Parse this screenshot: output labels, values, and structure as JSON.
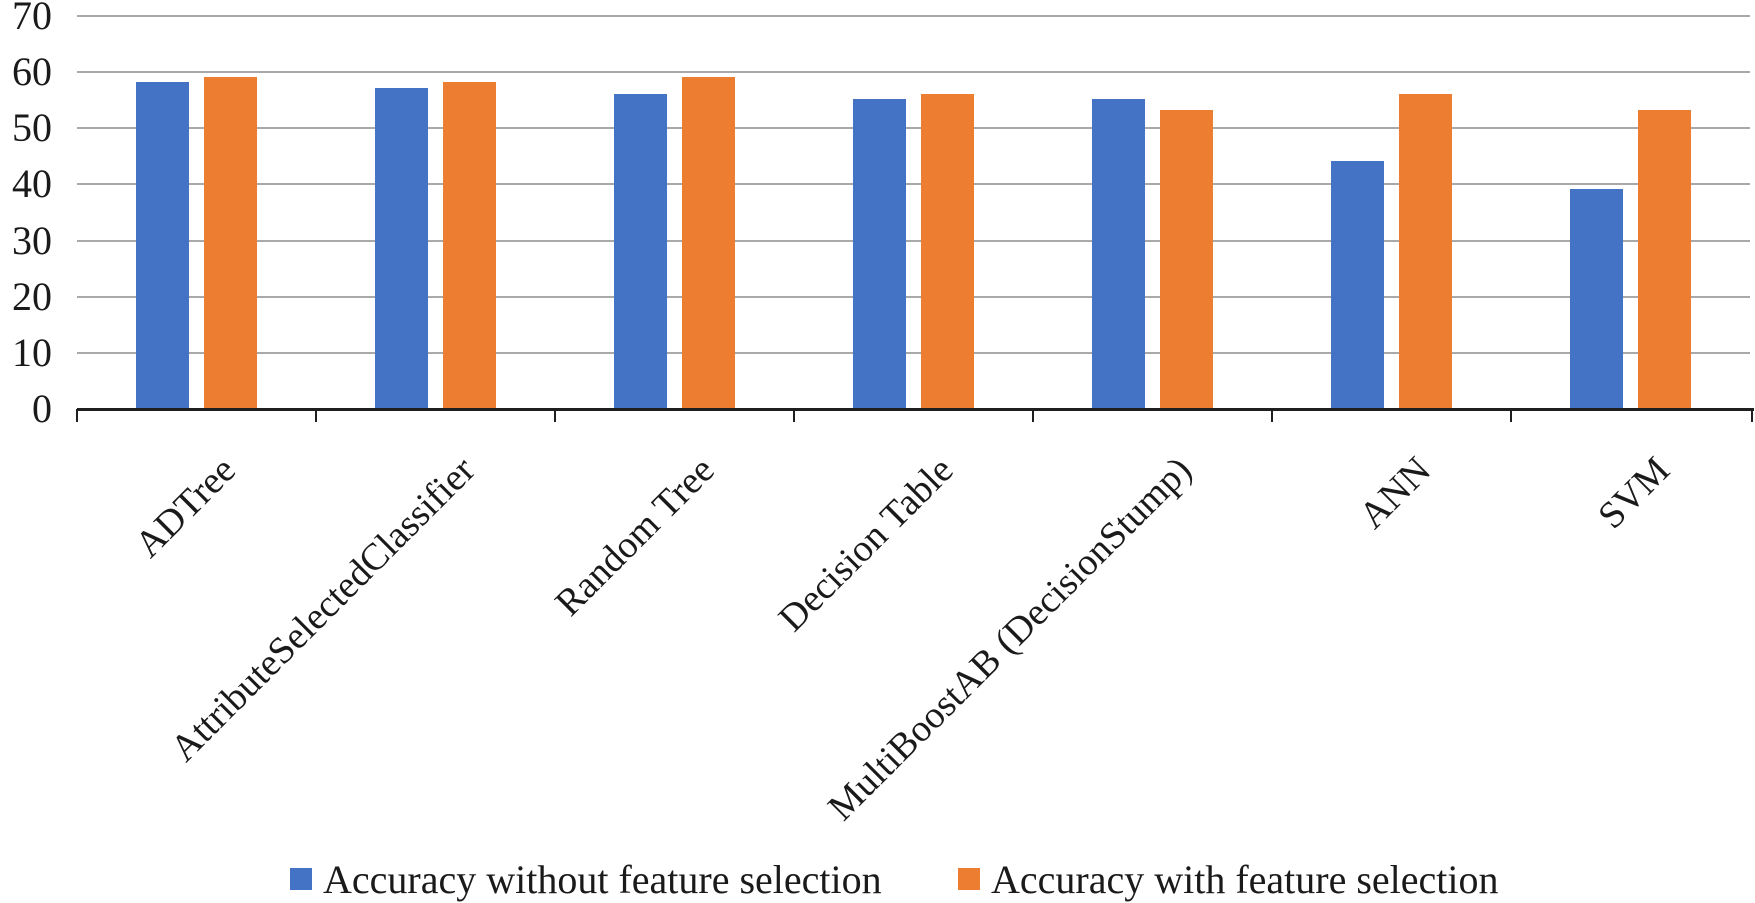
{
  "chart_data": {
    "type": "bar",
    "title": "",
    "xlabel": "",
    "ylabel": "",
    "categories": [
      "ADTree",
      "AttributeSelectedClassifier",
      "Random Tree",
      "Decision Table",
      "MultiBoostAB (DecisionStump)",
      "ANN",
      "SVM"
    ],
    "series": [
      {
        "name": "Accuracy without feature selection",
        "color": "#4472C4",
        "values": [
          58,
          57,
          56,
          55,
          55,
          44,
          39
        ]
      },
      {
        "name": "Accuracy with feature selection",
        "color": "#ED7D31",
        "values": [
          59,
          58,
          59,
          56,
          53,
          56,
          53
        ]
      }
    ],
    "ylim": [
      0,
      70
    ],
    "yticks": [
      0,
      10,
      20,
      30,
      40,
      50,
      60,
      70
    ],
    "grid": "horizontal",
    "legend_position": "bottom",
    "colors": {
      "gridline": "#A9A9A9",
      "axis_line": "#1F1F1F",
      "text": "#1A1A1A"
    }
  }
}
